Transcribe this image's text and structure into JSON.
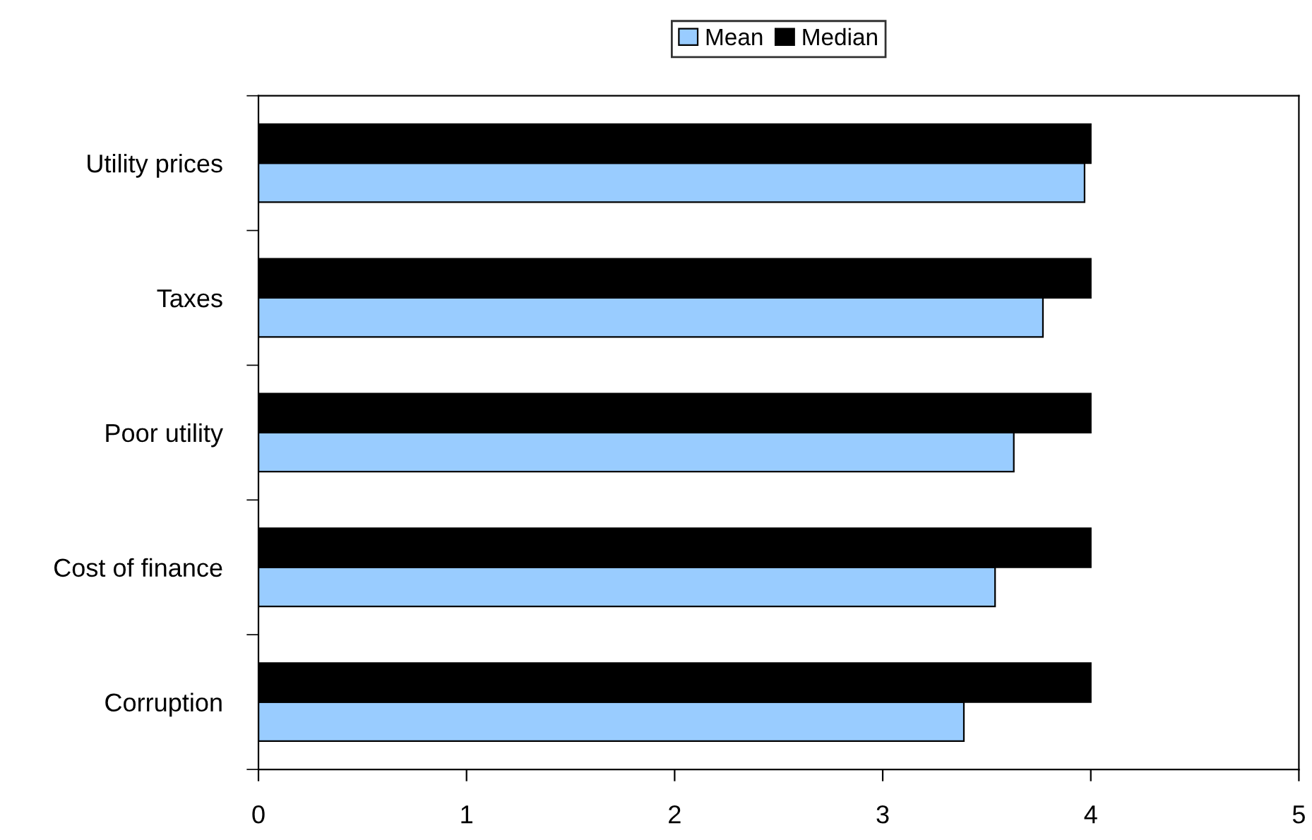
{
  "chart_data": {
    "type": "bar",
    "orientation": "horizontal",
    "categories": [
      "Utility prices",
      "Taxes",
      "Poor utility",
      "Cost of finance",
      "Corruption"
    ],
    "series": [
      {
        "name": "Mean",
        "color": "#99ccff",
        "values": [
          3.97,
          3.77,
          3.63,
          3.54,
          3.39
        ]
      },
      {
        "name": "Median",
        "color": "#000000",
        "values": [
          4,
          4,
          4,
          4,
          4
        ]
      }
    ],
    "xlim": [
      0,
      5
    ],
    "xticks": [
      0,
      1,
      2,
      3,
      4,
      5
    ],
    "legend": "top",
    "grid": false
  }
}
